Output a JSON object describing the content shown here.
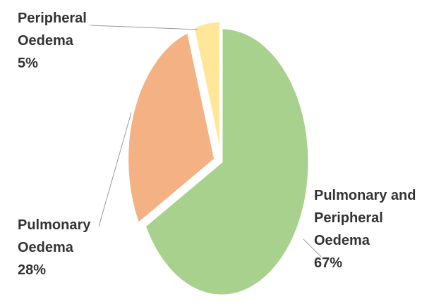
{
  "chart_data": {
    "type": "pie",
    "categories": [
      "Pulmonary and Peripheral Oedema",
      "Pulmonary Oedema",
      "Peripheral Oedema"
    ],
    "values": [
      67,
      28,
      5
    ],
    "value_labels": [
      "67%",
      "28%",
      "5%"
    ],
    "colors": [
      "#a9d18e",
      "#f4b183",
      "#ffe699"
    ]
  }
}
